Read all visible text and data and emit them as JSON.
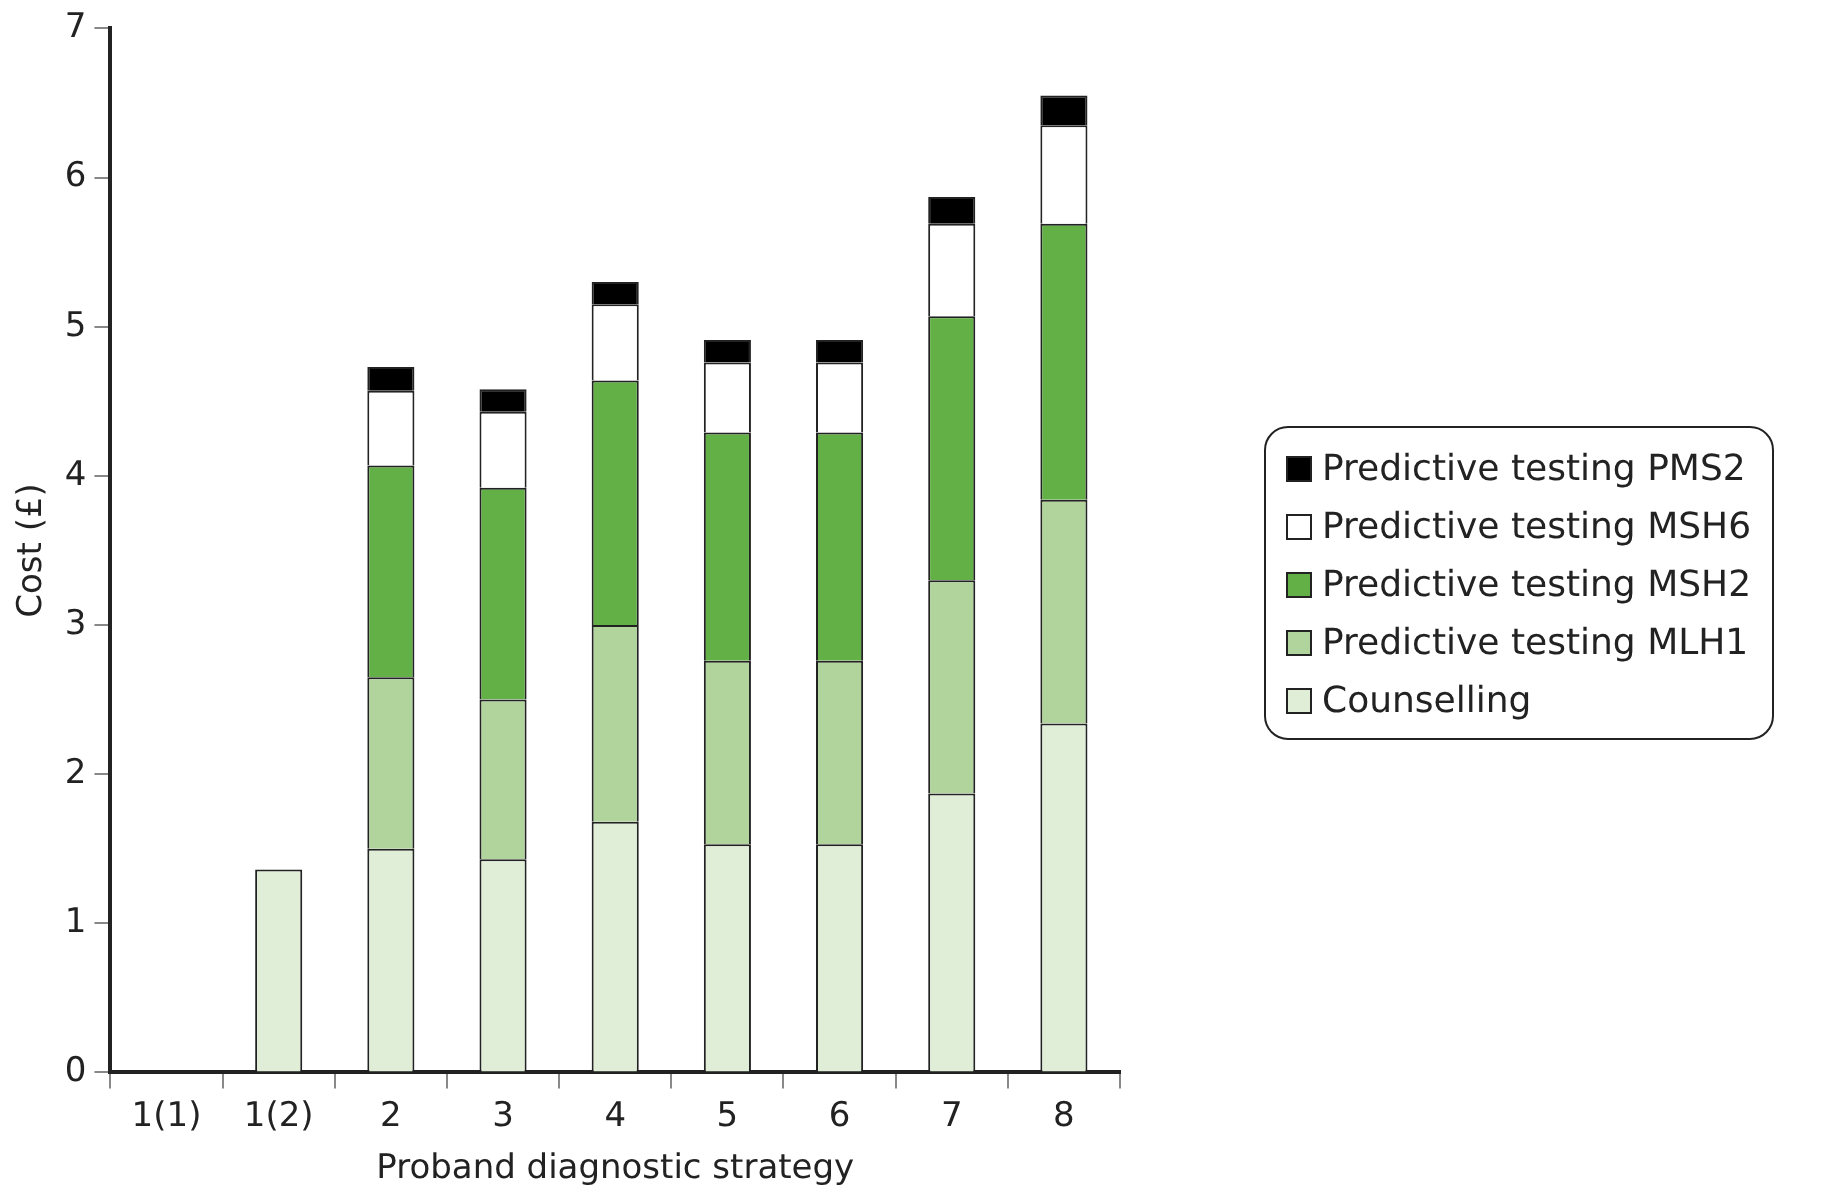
{
  "chart_data": {
    "type": "bar",
    "stacked": true,
    "xlabel": "Proband diagnostic strategy",
    "ylabel": "Cost (£)",
    "categories": [
      "1(1)",
      "1(2)",
      "2",
      "3",
      "4",
      "5",
      "6",
      "7",
      "8"
    ],
    "series": [
      {
        "name": "Counselling",
        "color": "#e0eed8",
        "values": [
          null,
          1.36,
          1.5,
          1.43,
          1.68,
          1.53,
          1.53,
          1.87,
          2.34
        ]
      },
      {
        "name": "Predictive testing MLH1",
        "color": "#b0d49c",
        "values": [
          null,
          null,
          1.15,
          1.07,
          1.32,
          1.23,
          1.23,
          1.43,
          1.5
        ]
      },
      {
        "name": "Predictive testing MSH2",
        "color": "#62b046",
        "values": [
          null,
          null,
          1.42,
          1.42,
          1.64,
          1.53,
          1.53,
          1.77,
          1.85
        ]
      },
      {
        "name": "Predictive testing MSH6",
        "color": "#ffffff",
        "values": [
          null,
          null,
          0.5,
          0.51,
          0.51,
          0.47,
          0.47,
          0.62,
          0.66
        ]
      },
      {
        "name": "Predictive testing PMS2",
        "color": "#000000",
        "values": [
          null,
          null,
          0.16,
          0.15,
          0.15,
          0.15,
          0.15,
          0.18,
          0.2
        ]
      }
    ],
    "ylim": [
      0,
      7
    ],
    "yticks": [
      0,
      1,
      2,
      3,
      4,
      5,
      6,
      7
    ],
    "grid": false,
    "legend": "right"
  }
}
